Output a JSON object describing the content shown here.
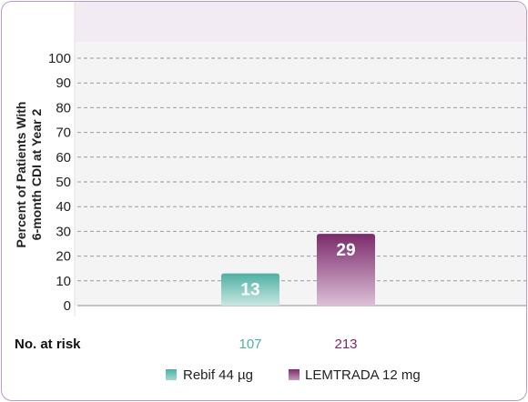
{
  "chart_data": {
    "type": "bar",
    "categories": [
      "Rebif 44 µg",
      "LEMTRADA 12 mg"
    ],
    "values": [
      13,
      29
    ],
    "series": [
      {
        "name": "Rebif 44 µg",
        "value": 13,
        "color": "#4fb0a3"
      },
      {
        "name": "LEMTRADA 12 mg",
        "value": 29,
        "color": "#7b2a6b"
      }
    ],
    "ylabel_line1": "Percent of Patients With",
    "ylabel_line2": "6-month CDI at Year 2",
    "ylim": [
      0,
      100
    ],
    "yticks": [
      0,
      10,
      20,
      30,
      40,
      50,
      60,
      70,
      80,
      90,
      100
    ],
    "grid": true,
    "legend_position": "bottom"
  },
  "risk_table": {
    "title": "No. at risk",
    "values": [
      "107",
      "213"
    ]
  },
  "colors": {
    "header_band": "#f3ebf4",
    "plot_band": "#f4f4f4",
    "border": "#b79bc2",
    "rebif": "#4fb0a3",
    "lemtrada": "#7b2a6b"
  }
}
